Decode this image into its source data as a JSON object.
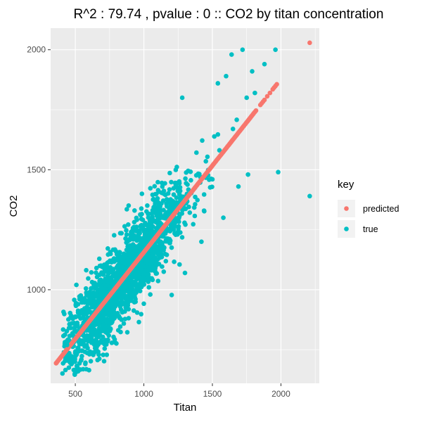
{
  "chart_data": {
    "type": "scatter",
    "title": "R^2 : 79.74 , pvalue :  0  :: CO2 by titan concentration",
    "xlabel": "Titan",
    "ylabel": "CO2",
    "xlim": [
      320,
      2280
    ],
    "ylim": [
      610,
      2090
    ],
    "x_ticks": [
      500,
      1000,
      1500,
      2000
    ],
    "y_ticks": [
      1000,
      1500,
      2000
    ],
    "x_tick_labels": [
      "500",
      "1000",
      "1500",
      "2000"
    ],
    "y_tick_labels": [
      "1000",
      "1500",
      "2000"
    ],
    "grid": true,
    "legend": {
      "title": "key",
      "position": "right",
      "entries": [
        "predicted",
        "true"
      ]
    },
    "colors": {
      "predicted": "#F8766D",
      "true": "#00BFC4",
      "panel": "#EBEBEB",
      "grid": "#FFFFFF"
    },
    "series": [
      {
        "name": "predicted",
        "color": "#F8766D",
        "fit": {
          "slope": 0.722,
          "intercept": 434
        },
        "x": [
          360,
          1850,
          1860,
          1870,
          1880,
          1900,
          1920,
          1940,
          1950,
          1960,
          1970,
          2210
        ],
        "y": [
          694,
          1770,
          1777,
          1784,
          1791,
          1806,
          1820,
          1835,
          1842,
          1849,
          1856,
          2029
        ]
      },
      {
        "name": "true",
        "color": "#00BFC4",
        "x": [
          1540,
          1600,
          1640,
          1720,
          1750,
          1790,
          1810,
          1880,
          1960,
          1980,
          2210,
          1650,
          1500,
          1420,
          1580,
          1690,
          1300,
          1280,
          440,
          470,
          520,
          1760
        ],
        "y": [
          1860,
          1890,
          1980,
          2000,
          1800,
          1910,
          1820,
          1940,
          2000,
          1490,
          1390,
          1670,
          1460,
          1200,
          1300,
          1430,
          1070,
          1800,
          770,
          700,
          660,
          1480
        ]
      }
    ]
  }
}
